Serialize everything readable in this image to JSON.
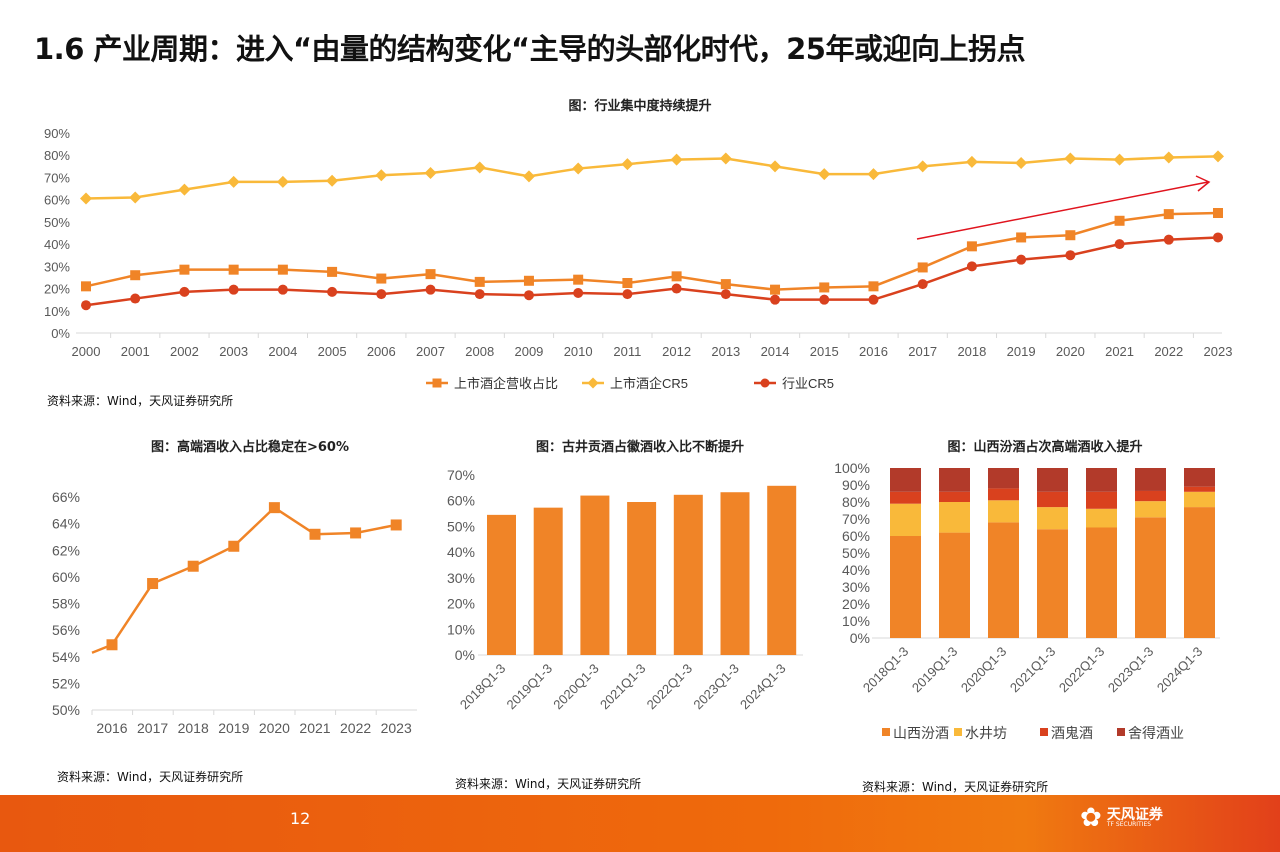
{
  "title": "1.6 产业周期：进入“由量的结构变化“主导的头部化时代，25年或迎向上拐点",
  "colors": {
    "orange": "#f08427",
    "yellow": "#f9b93a",
    "red": "#d9411e",
    "darkred": "#b23a2a",
    "arrow": "#e0141e"
  },
  "top_chart": {
    "title": "图：行业集中度持续提升",
    "source": "资料来源：Wind，天风证券研究所"
  },
  "left_chart": {
    "title": "图：高端酒收入占比稳定在>60%",
    "source": "资料来源：Wind，天风证券研究所"
  },
  "mid_chart": {
    "title": "图：古井贡酒占徽酒收入比不断提升",
    "source": "资料来源：Wind，天风证券研究所"
  },
  "right_chart": {
    "title": "图：山西汾酒占次高端酒收入提升",
    "source": "资料来源：Wind，天风证券研究所"
  },
  "footer": {
    "page": "12",
    "logo_cn": "天风证券",
    "logo_en": "TF SECURITIES"
  },
  "chart_data": [
    {
      "type": "line",
      "title": "图：行业集中度持续提升",
      "x": [
        "2000",
        "2001",
        "2002",
        "2003",
        "2004",
        "2005",
        "2006",
        "2007",
        "2008",
        "2009",
        "2010",
        "2011",
        "2012",
        "2013",
        "2014",
        "2015",
        "2016",
        "2017",
        "2018",
        "2019",
        "2020",
        "2021",
        "2022",
        "2023"
      ],
      "ylim": [
        0,
        90
      ],
      "yticks": [
        "0%",
        "10%",
        "20%",
        "30%",
        "40%",
        "50%",
        "60%",
        "70%",
        "80%",
        "90%"
      ],
      "legend": "bottom",
      "annotation": "upward trend arrow 2017-2023",
      "series": [
        {
          "name": "上市酒企营收占比",
          "marker": "square",
          "color": "#f08427",
          "values": [
            21,
            26,
            28.5,
            28.5,
            28.5,
            27.5,
            24.5,
            26.5,
            23,
            23.5,
            24,
            22.5,
            25.5,
            22,
            19.5,
            20.5,
            21,
            29.5,
            39,
            43,
            44,
            50.5,
            53.5,
            54
          ]
        },
        {
          "name": "上市酒企CR5",
          "marker": "diamond",
          "color": "#f9b93a",
          "values": [
            60.5,
            61,
            64.5,
            68,
            68,
            68.5,
            71,
            72,
            74.5,
            70.5,
            74,
            76,
            78,
            78.5,
            75,
            71.5,
            71.5,
            75,
            77,
            76.5,
            78.5,
            78,
            79,
            79.5
          ]
        },
        {
          "name": "行业CR5",
          "marker": "circle",
          "color": "#d9411e",
          "values": [
            12.5,
            15.5,
            18.5,
            19.5,
            19.5,
            18.5,
            17.5,
            19.5,
            17.5,
            17,
            18,
            17.5,
            20,
            17.5,
            15,
            15,
            15,
            22,
            30,
            33,
            35,
            40,
            42,
            43
          ]
        }
      ]
    },
    {
      "type": "line",
      "title": "图：高端酒收入占比稳定在>60%",
      "x": [
        "2016",
        "2017",
        "2018",
        "2019",
        "2020",
        "2021",
        "2022",
        "2023"
      ],
      "ylim": [
        50,
        66
      ],
      "yticks": [
        "50%",
        "52%",
        "54%",
        "56%",
        "58%",
        "60%",
        "62%",
        "64%",
        "66%"
      ],
      "lead_in_value": 54.3,
      "values": [
        54.9,
        59.5,
        60.8,
        62.3,
        65.2,
        63.2,
        63.3,
        63.9
      ]
    },
    {
      "type": "bar",
      "title": "图：古井贡酒占徽酒收入比不断提升",
      "categories": [
        "2018Q1-3",
        "2019Q1-3",
        "2020Q1-3",
        "2021Q1-3",
        "2022Q1-3",
        "2023Q1-3",
        "2024Q1-3"
      ],
      "ylim": [
        0,
        70
      ],
      "yticks": [
        "0%",
        "10%",
        "20%",
        "30%",
        "40%",
        "50%",
        "60%",
        "70%"
      ],
      "values": [
        54.5,
        57.3,
        62,
        59.5,
        62.3,
        63.3,
        65.8
      ]
    },
    {
      "type": "bar",
      "stacked": true,
      "title": "图：山西汾酒占次高端酒收入提升",
      "categories": [
        "2018Q1-3",
        "2019Q1-3",
        "2020Q1-3",
        "2021Q1-3",
        "2022Q1-3",
        "2023Q1-3",
        "2024Q1-3"
      ],
      "ylim": [
        0,
        100
      ],
      "yticks": [
        "0%",
        "10%",
        "20%",
        "30%",
        "40%",
        "50%",
        "60%",
        "70%",
        "80%",
        "90%",
        "100%"
      ],
      "legend": "bottom",
      "series": [
        {
          "name": "山西汾酒",
          "color": "#f08427",
          "values": [
            60,
            62,
            68,
            64,
            65,
            71,
            77
          ]
        },
        {
          "name": "水井坊",
          "color": "#f9b93a",
          "values": [
            19,
            18,
            13,
            13,
            11,
            9.5,
            9
          ]
        },
        {
          "name": "酒鬼酒",
          "color": "#d9411e",
          "values": [
            7,
            6,
            7,
            9,
            10,
            6,
            3
          ]
        },
        {
          "name": "舍得酒业",
          "color": "#b23a2a",
          "values": [
            14,
            14,
            12,
            14,
            14,
            13.5,
            11
          ]
        }
      ]
    }
  ]
}
